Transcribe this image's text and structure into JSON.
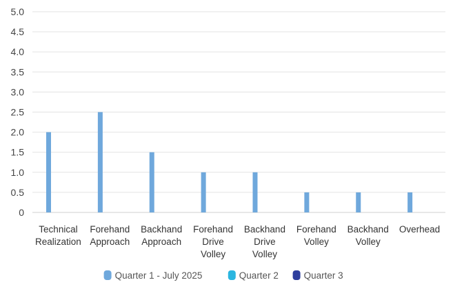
{
  "chart_data": {
    "type": "bar",
    "title": "",
    "xlabel": "",
    "ylabel": "",
    "ylim": [
      0,
      5
    ],
    "y_ticks": [
      "0",
      "0.5",
      "1.0",
      "1.5",
      "2.0",
      "2.5",
      "3.0",
      "3.5",
      "4.0",
      "4.5",
      "5.0"
    ],
    "y_tick_values": [
      0,
      0.5,
      1,
      1.5,
      2,
      2.5,
      3,
      3.5,
      4,
      4.5,
      5
    ],
    "grid": true,
    "legend_position": "bottom",
    "categories": [
      [
        "Technical",
        "Realization"
      ],
      [
        "Forehand",
        "Approach"
      ],
      [
        "Backhand",
        "Approach"
      ],
      [
        "Forehand",
        "Drive",
        "Volley"
      ],
      [
        "Backhand",
        "Drive",
        "Volley"
      ],
      [
        "Forehand",
        "Volley"
      ],
      [
        "Backhand",
        "Volley"
      ],
      [
        "Overhead"
      ]
    ],
    "series": [
      {
        "name": "Quarter 1 - July 2025",
        "color": "#6fa8dc",
        "values": [
          2,
          2.5,
          1.5,
          1,
          1,
          0.5,
          0.5,
          0.5
        ]
      },
      {
        "name": "Quarter 2",
        "color": "#2bb6e0",
        "values": [
          0,
          0,
          0,
          0,
          0,
          0,
          0,
          0
        ]
      },
      {
        "name": "Quarter 3",
        "color": "#2e3f9e",
        "values": [
          0,
          0,
          0,
          0,
          0,
          0,
          0,
          0
        ]
      }
    ]
  }
}
